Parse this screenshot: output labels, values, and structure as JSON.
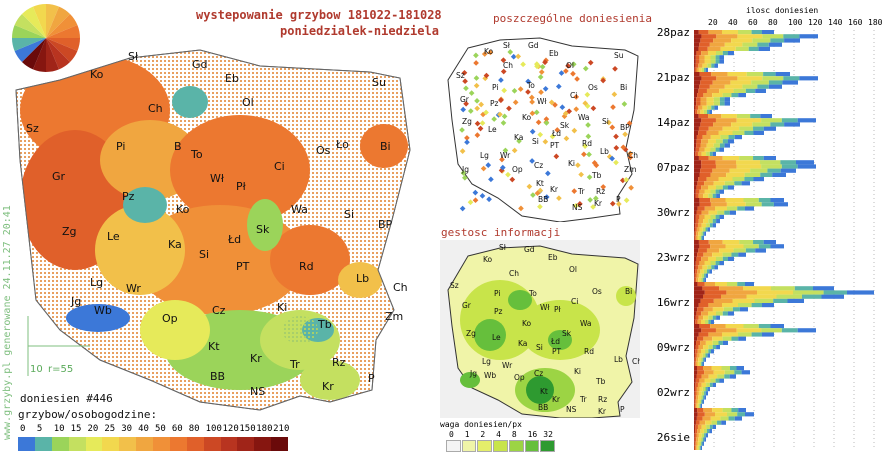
{
  "header": {
    "title_line1": "wystepowanie grzybow 181022-181028",
    "title_line2": "poniedzialek-niedziela"
  },
  "side_text": "www.grzyby.pl generowane 24.11.27 20:41",
  "legend_small": {
    "distance": "10",
    "radius": "r=55"
  },
  "reports_count": "doniesien #446",
  "scale_label": "grzybow/osobogodzine:",
  "scale": [
    {
      "v": "0",
      "c": "#3c78d8"
    },
    {
      "v": "5",
      "c": "#5ab4a8"
    },
    {
      "v": "10",
      "c": "#9bd45a"
    },
    {
      "v": "15",
      "c": "#c4e060"
    },
    {
      "v": "20",
      "c": "#e6ea5a"
    },
    {
      "v": "25",
      "c": "#f2d84e"
    },
    {
      "v": "30",
      "c": "#f2c04a"
    },
    {
      "v": "40",
      "c": "#f0a640"
    },
    {
      "v": "50",
      "c": "#f09038"
    },
    {
      "v": "60",
      "c": "#ec7830"
    },
    {
      "v": "80",
      "c": "#e0602a"
    },
    {
      "v": "100",
      "c": "#cc4824"
    },
    {
      "v": "120",
      "c": "#b83420"
    },
    {
      "v": "150",
      "c": "#a02418"
    },
    {
      "v": "180",
      "c": "#861610"
    },
    {
      "v": "210",
      "c": "#6a0a0a"
    }
  ],
  "main_cities": [
    {
      "t": "Sł",
      "x": 128,
      "y": 60
    },
    {
      "t": "Gd",
      "x": 192,
      "y": 68
    },
    {
      "t": "Eb",
      "x": 225,
      "y": 82
    },
    {
      "t": "Su",
      "x": 372,
      "y": 86
    },
    {
      "t": "Ko",
      "x": 90,
      "y": 78
    },
    {
      "t": "Ol",
      "x": 242,
      "y": 106
    },
    {
      "t": "Ch",
      "x": 148,
      "y": 112
    },
    {
      "t": "Sz",
      "x": 26,
      "y": 132
    },
    {
      "t": "Bi",
      "x": 380,
      "y": 150
    },
    {
      "t": "Pi",
      "x": 116,
      "y": 150
    },
    {
      "t": "B",
      "x": 174,
      "y": 150
    },
    {
      "t": "To",
      "x": 191,
      "y": 158
    },
    {
      "t": "Os",
      "x": 316,
      "y": 154
    },
    {
      "t": "Ło",
      "x": 336,
      "y": 148
    },
    {
      "t": "Ci",
      "x": 274,
      "y": 170
    },
    {
      "t": "Gr",
      "x": 52,
      "y": 180
    },
    {
      "t": "Wł",
      "x": 210,
      "y": 182
    },
    {
      "t": "Pł",
      "x": 236,
      "y": 190
    },
    {
      "t": "Pz",
      "x": 122,
      "y": 200
    },
    {
      "t": "Ko",
      "x": 176,
      "y": 213
    },
    {
      "t": "Wa",
      "x": 291,
      "y": 213
    },
    {
      "t": "Si",
      "x": 344,
      "y": 218
    },
    {
      "t": "Zg",
      "x": 62,
      "y": 235
    },
    {
      "t": "Le",
      "x": 107,
      "y": 240
    },
    {
      "t": "Sk",
      "x": 256,
      "y": 233
    },
    {
      "t": "BP",
      "x": 378,
      "y": 228
    },
    {
      "t": "Ka",
      "x": 168,
      "y": 248
    },
    {
      "t": "Łd",
      "x": 228,
      "y": 243
    },
    {
      "t": "Si",
      "x": 199,
      "y": 258
    },
    {
      "t": "Rd",
      "x": 299,
      "y": 270
    },
    {
      "t": "PT",
      "x": 236,
      "y": 270
    },
    {
      "t": "Lb",
      "x": 356,
      "y": 282
    },
    {
      "t": "Lg",
      "x": 90,
      "y": 286
    },
    {
      "t": "Wr",
      "x": 126,
      "y": 292
    },
    {
      "t": "Ch",
      "x": 393,
      "y": 291
    },
    {
      "t": "Jg",
      "x": 71,
      "y": 305
    },
    {
      "t": "Wb",
      "x": 94,
      "y": 314
    },
    {
      "t": "Op",
      "x": 162,
      "y": 322
    },
    {
      "t": "Cz",
      "x": 212,
      "y": 314
    },
    {
      "t": "Ki",
      "x": 277,
      "y": 311
    },
    {
      "t": "Zm",
      "x": 385,
      "y": 320
    },
    {
      "t": "Tb",
      "x": 318,
      "y": 328
    },
    {
      "t": "Kt",
      "x": 208,
      "y": 350
    },
    {
      "t": "Kr",
      "x": 250,
      "y": 362
    },
    {
      "t": "Rz",
      "x": 332,
      "y": 366
    },
    {
      "t": "Tr",
      "x": 290,
      "y": 368
    },
    {
      "t": "BB",
      "x": 210,
      "y": 380
    },
    {
      "t": "P",
      "x": 368,
      "y": 382
    },
    {
      "t": "Kr",
      "x": 322,
      "y": 390
    },
    {
      "t": "NS",
      "x": 250,
      "y": 395
    }
  ],
  "small_map1_title": "poszczególne doniesienia",
  "small_map1_cities": [
    {
      "t": "Sł",
      "x": 503,
      "y": 48
    },
    {
      "t": "Gd",
      "x": 528,
      "y": 48
    },
    {
      "t": "Ko",
      "x": 484,
      "y": 54
    },
    {
      "t": "Eb",
      "x": 549,
      "y": 56
    },
    {
      "t": "Su",
      "x": 614,
      "y": 58
    },
    {
      "t": "Ch",
      "x": 503,
      "y": 68
    },
    {
      "t": "Ol",
      "x": 566,
      "y": 68
    },
    {
      "t": "Sz",
      "x": 456,
      "y": 78
    },
    {
      "t": "Os",
      "x": 588,
      "y": 90
    },
    {
      "t": "Bi",
      "x": 620,
      "y": 90
    },
    {
      "t": "Pi",
      "x": 492,
      "y": 90
    },
    {
      "t": "To",
      "x": 527,
      "y": 88
    },
    {
      "t": "Ci",
      "x": 570,
      "y": 98
    },
    {
      "t": "Gr",
      "x": 460,
      "y": 102
    },
    {
      "t": "Wł",
      "x": 537,
      "y": 104
    },
    {
      "t": "Pz",
      "x": 490,
      "y": 106
    },
    {
      "t": "Ko",
      "x": 522,
      "y": 120
    },
    {
      "t": "Wa",
      "x": 578,
      "y": 120
    },
    {
      "t": "Si",
      "x": 602,
      "y": 124
    },
    {
      "t": "Zg",
      "x": 462,
      "y": 124
    },
    {
      "t": "Le",
      "x": 488,
      "y": 132
    },
    {
      "t": "Sk",
      "x": 560,
      "y": 128
    },
    {
      "t": "BP",
      "x": 620,
      "y": 130
    },
    {
      "t": "Ka",
      "x": 514,
      "y": 140
    },
    {
      "t": "Łd",
      "x": 552,
      "y": 136
    },
    {
      "t": "Rd",
      "x": 582,
      "y": 146
    },
    {
      "t": "Si",
      "x": 532,
      "y": 144
    },
    {
      "t": "PT",
      "x": 550,
      "y": 148
    },
    {
      "t": "Lg",
      "x": 480,
      "y": 158
    },
    {
      "t": "Wr",
      "x": 500,
      "y": 158
    },
    {
      "t": "Lb",
      "x": 600,
      "y": 154
    },
    {
      "t": "Ch",
      "x": 628,
      "y": 158
    },
    {
      "t": "Jg",
      "x": 462,
      "y": 172
    },
    {
      "t": "Op",
      "x": 512,
      "y": 172
    },
    {
      "t": "Cz",
      "x": 534,
      "y": 168
    },
    {
      "t": "Ki",
      "x": 568,
      "y": 166
    },
    {
      "t": "Zm",
      "x": 624,
      "y": 172
    },
    {
      "t": "Tb",
      "x": 592,
      "y": 178
    },
    {
      "t": "Kt",
      "x": 536,
      "y": 186
    },
    {
      "t": "Kr",
      "x": 550,
      "y": 192
    },
    {
      "t": "Rz",
      "x": 596,
      "y": 194
    },
    {
      "t": "Tr",
      "x": 578,
      "y": 194
    },
    {
      "t": "BB",
      "x": 538,
      "y": 202
    },
    {
      "t": "NS",
      "x": 572,
      "y": 210
    },
    {
      "t": "Kr",
      "x": 594,
      "y": 206
    },
    {
      "t": "P",
      "x": 616,
      "y": 202
    }
  ],
  "small_map2_title": "gestosc informacji",
  "small_map2_cities": [
    {
      "t": "Sł",
      "x": 499,
      "y": 250
    },
    {
      "t": "Gd",
      "x": 524,
      "y": 252
    },
    {
      "t": "Eb",
      "x": 548,
      "y": 260
    },
    {
      "t": "Ko",
      "x": 483,
      "y": 262
    },
    {
      "t": "Ol",
      "x": 569,
      "y": 272
    },
    {
      "t": "Ch",
      "x": 509,
      "y": 276
    },
    {
      "t": "Sz",
      "x": 450,
      "y": 288
    },
    {
      "t": "Bi",
      "x": 625,
      "y": 294
    },
    {
      "t": "Pi",
      "x": 494,
      "y": 296
    },
    {
      "t": "To",
      "x": 529,
      "y": 296
    },
    {
      "t": "Os",
      "x": 592,
      "y": 294
    },
    {
      "t": "Ci",
      "x": 571,
      "y": 304
    },
    {
      "t": "Gr",
      "x": 462,
      "y": 308
    },
    {
      "t": "Wł",
      "x": 540,
      "y": 310
    },
    {
      "t": "Pł",
      "x": 554,
      "y": 312
    },
    {
      "t": "Pz",
      "x": 494,
      "y": 314
    },
    {
      "t": "Ko",
      "x": 522,
      "y": 326
    },
    {
      "t": "Wa",
      "x": 580,
      "y": 326
    },
    {
      "t": "Zg",
      "x": 466,
      "y": 336
    },
    {
      "t": "Sk",
      "x": 562,
      "y": 336
    },
    {
      "t": "Le",
      "x": 492,
      "y": 340
    },
    {
      "t": "Łd",
      "x": 551,
      "y": 344
    },
    {
      "t": "Ka",
      "x": 518,
      "y": 346
    },
    {
      "t": "Si",
      "x": 536,
      "y": 350
    },
    {
      "t": "PT",
      "x": 552,
      "y": 354
    },
    {
      "t": "Rd",
      "x": 584,
      "y": 354
    },
    {
      "t": "Lg",
      "x": 482,
      "y": 364
    },
    {
      "t": "Wr",
      "x": 502,
      "y": 368
    },
    {
      "t": "Lb",
      "x": 614,
      "y": 362
    },
    {
      "t": "Ch",
      "x": 632,
      "y": 364
    },
    {
      "t": "Jg",
      "x": 470,
      "y": 376
    },
    {
      "t": "Wb",
      "x": 484,
      "y": 378
    },
    {
      "t": "Op",
      "x": 514,
      "y": 380
    },
    {
      "t": "Cz",
      "x": 534,
      "y": 376
    },
    {
      "t": "Ki",
      "x": 574,
      "y": 374
    },
    {
      "t": "Tb",
      "x": 596,
      "y": 384
    },
    {
      "t": "Kt",
      "x": 540,
      "y": 394
    },
    {
      "t": "Kr",
      "x": 552,
      "y": 402
    },
    {
      "t": "BB",
      "x": 538,
      "y": 410
    },
    {
      "t": "Tr",
      "x": 580,
      "y": 402
    },
    {
      "t": "Rz",
      "x": 598,
      "y": 402
    },
    {
      "t": "NS",
      "x": 566,
      "y": 412
    },
    {
      "t": "Kr",
      "x": 598,
      "y": 414
    },
    {
      "t": "P",
      "x": 620,
      "y": 412
    }
  ],
  "weight_label": "waga doniesien/px",
  "weight_scale": [
    {
      "v": "0",
      "c": "#f4f4f4"
    },
    {
      "v": "1",
      "c": "#f0f4a8"
    },
    {
      "v": "2",
      "c": "#e4ee6a"
    },
    {
      "v": "4",
      "c": "#c8e44a"
    },
    {
      "v": "8",
      "c": "#9cd444"
    },
    {
      "v": "16",
      "c": "#66bf3c"
    },
    {
      "v": "32",
      "c": "#2e9a30"
    }
  ],
  "hist_axis_title": "ilosc doniesien",
  "hist_ticks": [
    "20",
    "40",
    "60",
    "80",
    "100",
    "120",
    "140",
    "160",
    "180"
  ],
  "hist_dates": [
    "28paz",
    "21paz",
    "14paz",
    "07paz",
    "30wrz",
    "23wrz",
    "16wrz",
    "09wrz",
    "02wrz",
    "26sie"
  ],
  "chart_data": {
    "type": "bar",
    "title": "ilosc doniesien",
    "xlim": [
      0,
      180
    ],
    "orientation": "horizontal",
    "values": [
      80,
      124,
      106,
      88,
      76,
      40,
      30,
      30,
      24,
      14,
      96,
      124,
      104,
      88,
      72,
      52,
      36,
      36,
      24,
      18,
      78,
      122,
      106,
      82,
      70,
      48,
      40,
      36,
      30,
      22,
      82,
      120,
      122,
      102,
      92,
      70,
      56,
      40,
      30,
      26,
      90,
      94,
      60,
      42,
      30,
      26,
      22,
      16,
      12,
      10,
      82,
      90,
      72,
      52,
      40,
      30,
      24,
      18,
      14,
      12,
      60,
      140,
      180,
      150,
      110,
      80,
      54,
      40,
      26,
      20,
      90,
      122,
      80,
      52,
      34,
      26,
      20,
      16,
      12,
      10,
      50,
      56,
      42,
      30,
      22,
      16,
      14,
      12,
      10,
      8,
      52,
      60,
      48,
      32,
      22,
      18,
      14,
      12,
      10,
      8
    ]
  }
}
